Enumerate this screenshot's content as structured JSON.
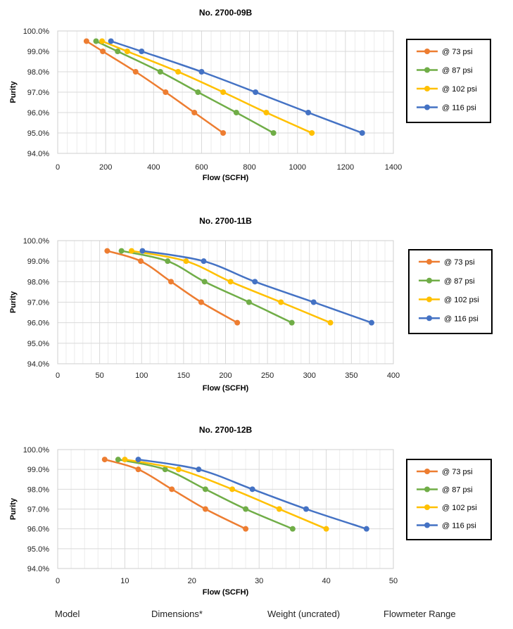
{
  "chart_data": [
    {
      "type": "line",
      "title": "No. 2700-09B",
      "xlabel": "Flow (SCFH)",
      "ylabel": "Purity",
      "xlim": [
        0,
        1400
      ],
      "xticks": [
        "0",
        "200",
        "400",
        "600",
        "800",
        "1000",
        "1200",
        "1400"
      ],
      "ylim": [
        94.0,
        100.0
      ],
      "yticks": [
        "94.0%",
        "95.0%",
        "96.0%",
        "97.0%",
        "98.0%",
        "99.0%",
        "100.0%"
      ],
      "grid": true,
      "legend": "right",
      "series": [
        {
          "name": "@ 73 psi",
          "color": "#ED7D31",
          "x": [
            120,
            188,
            325,
            450,
            570,
            690
          ],
          "y": [
            99.5,
            99.0,
            98.0,
            97.0,
            96.0,
            95.0
          ]
        },
        {
          "name": "@ 87 psi",
          "color": "#70AD47",
          "x": [
            160,
            250,
            428,
            585,
            745,
            900
          ],
          "y": [
            99.5,
            99.0,
            98.0,
            97.0,
            96.0,
            95.0
          ]
        },
        {
          "name": "@ 102 psi",
          "color": "#FFC000",
          "x": [
            185,
            290,
            502,
            690,
            870,
            1060
          ],
          "y": [
            99.5,
            99.0,
            98.0,
            97.0,
            96.0,
            95.0
          ]
        },
        {
          "name": "@ 116 psi",
          "color": "#4472C4",
          "x": [
            222,
            350,
            600,
            825,
            1045,
            1270
          ],
          "y": [
            99.5,
            99.0,
            98.0,
            97.0,
            96.0,
            95.0
          ]
        }
      ]
    },
    {
      "type": "line",
      "title": "No. 2700-11B",
      "xlabel": "Flow (SCFH)",
      "ylabel": "Purity",
      "xlim": [
        0,
        400
      ],
      "xticks": [
        "0",
        "50",
        "100",
        "150",
        "200",
        "250",
        "300",
        "350",
        "400"
      ],
      "ylim": [
        94.0,
        100.0
      ],
      "yticks": [
        "94.0%",
        "95.0%",
        "96.0%",
        "97.0%",
        "98.0%",
        "99.0%",
        "100.0%"
      ],
      "grid": true,
      "legend": "right",
      "series": [
        {
          "name": "@ 73 psi",
          "color": "#ED7D31",
          "x": [
            59,
            99,
            135,
            171,
            214
          ],
          "y": [
            99.5,
            99.0,
            98.0,
            97.0,
            96.0
          ]
        },
        {
          "name": "@ 87 psi",
          "color": "#70AD47",
          "x": [
            76,
            131,
            175,
            228,
            279
          ],
          "y": [
            99.5,
            99.0,
            98.0,
            97.0,
            96.0
          ]
        },
        {
          "name": "@ 102 psi",
          "color": "#FFC000",
          "x": [
            88,
            153,
            206,
            266,
            325
          ],
          "y": [
            99.5,
            99.0,
            98.0,
            97.0,
            96.0
          ]
        },
        {
          "name": "@ 116 psi",
          "color": "#4472C4",
          "x": [
            101,
            174,
            235,
            305,
            374
          ],
          "y": [
            99.5,
            99.0,
            98.0,
            97.0,
            96.0
          ]
        }
      ]
    },
    {
      "type": "line",
      "title": "No. 2700-12B",
      "xlabel": "Flow (SCFH)",
      "ylabel": "Purity",
      "xlim": [
        0,
        50
      ],
      "xticks": [
        "0",
        "10",
        "20",
        "30",
        "40",
        "50"
      ],
      "ylim": [
        94.0,
        100.0
      ],
      "yticks": [
        "94.0%",
        "95.0%",
        "96.0%",
        "97.0%",
        "98.0%",
        "99.0%",
        "100.0%"
      ],
      "grid": true,
      "legend": "right",
      "series": [
        {
          "name": "@ 73 psi",
          "color": "#ED7D31",
          "x": [
            7,
            12,
            17,
            22,
            28
          ],
          "y": [
            99.5,
            99.0,
            98.0,
            97.0,
            96.0
          ]
        },
        {
          "name": "@ 87 psi",
          "color": "#70AD47",
          "x": [
            9,
            16,
            22,
            28,
            35
          ],
          "y": [
            99.5,
            99.0,
            98.0,
            97.0,
            96.0
          ]
        },
        {
          "name": "@ 102 psi",
          "color": "#FFC000",
          "x": [
            10,
            18,
            26,
            33,
            40
          ],
          "y": [
            99.5,
            99.0,
            98.0,
            97.0,
            96.0
          ]
        },
        {
          "name": "@ 116 psi",
          "color": "#4472C4",
          "x": [
            12,
            21,
            29,
            37,
            46
          ],
          "y": [
            99.5,
            99.0,
            98.0,
            97.0,
            96.0
          ]
        }
      ]
    }
  ],
  "footer": {
    "model": "Model",
    "dimensions": "Dimensions*",
    "weight": "Weight (uncrated)",
    "flowmeter": "Flowmeter Range"
  }
}
